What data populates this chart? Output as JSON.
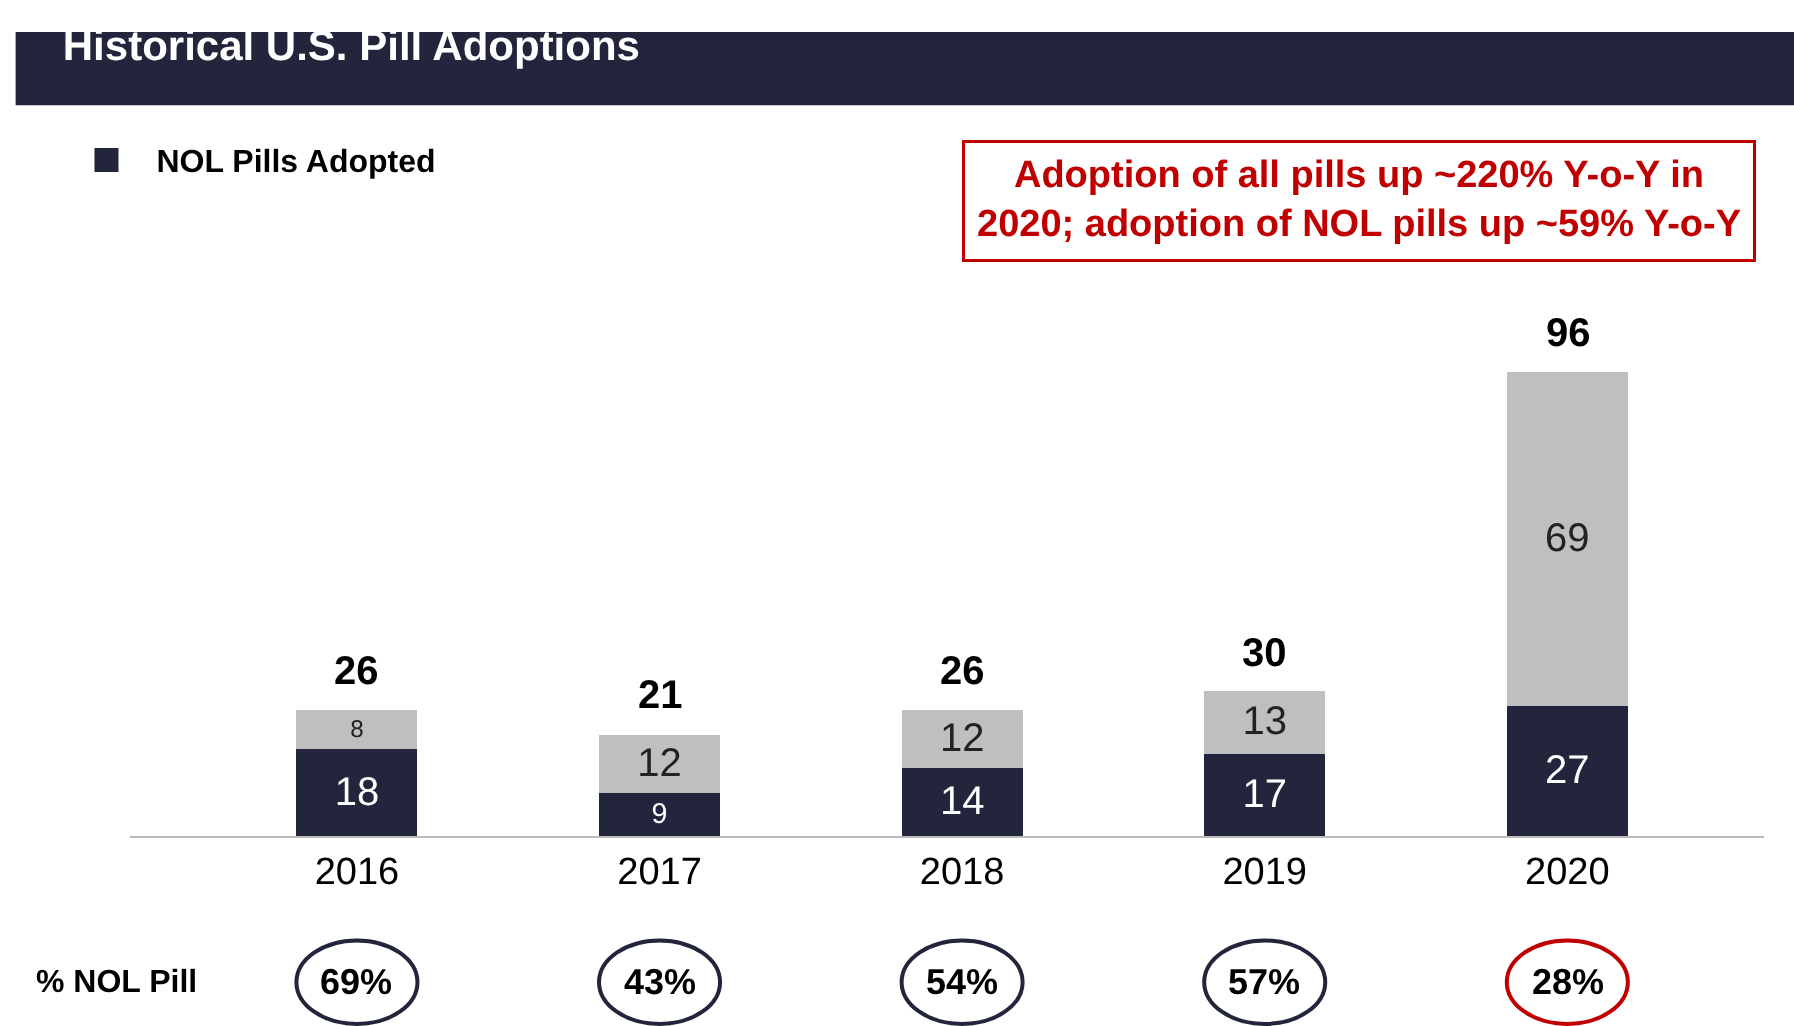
{
  "chart_data": {
    "type": "bar",
    "title": "Historical U.S. Pill Adoptions",
    "stacked": true,
    "categories": [
      "2016",
      "2017",
      "2018",
      "2019",
      "2020"
    ],
    "series": [
      {
        "name": "NOL Pills Adopted",
        "color": "#22253b",
        "values": [
          18,
          9,
          14,
          17,
          27
        ]
      },
      {
        "color": "#bfbfbf",
        "values": [
          8,
          12,
          12,
          13,
          69
        ]
      }
    ],
    "data_labels": true,
    "totals": [
      "26",
      "21",
      "26",
      "30",
      "96"
    ],
    "legend": "top left",
    "annotations": [
      "Adoption of all pills up ~220% Y-o-Y in 2020; adoption of NOL pills up ~59% Y-o-Y",
      "% NOL Pill",
      "69%",
      "43%",
      "54%",
      "57%",
      "28%"
    ]
  }
}
